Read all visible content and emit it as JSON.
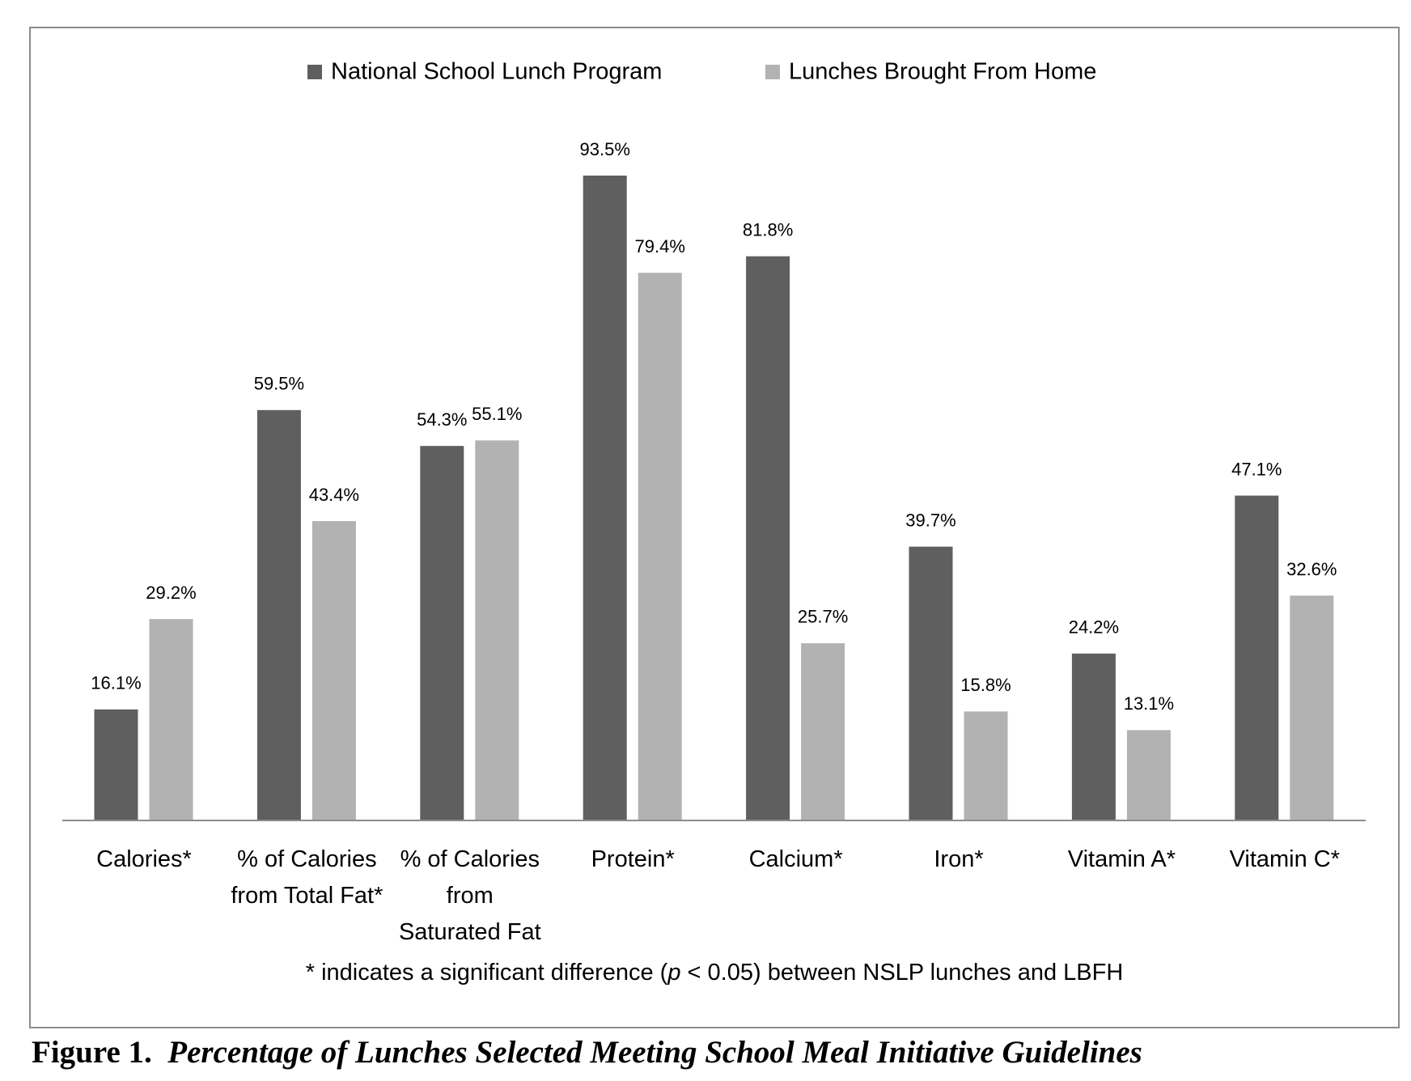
{
  "chart_data": {
    "type": "bar",
    "categories": [
      "Calories*",
      "% of Calories from Total Fat*",
      "% of Calories from Saturated Fat",
      "Protein*",
      "Calcium*",
      "Iron*",
      "Vitamin A*",
      "Vitamin C*"
    ],
    "series": [
      {
        "name": "National School Lunch Program",
        "color": "#5f5f5f",
        "values": [
          16.1,
          59.5,
          54.3,
          93.5,
          81.8,
          39.7,
          24.2,
          47.1
        ],
        "value_labels": [
          "16.1%",
          "59.5%",
          "54.3%",
          "93.5%",
          "81.8%",
          "39.7%",
          "24.2%",
          "47.1%"
        ]
      },
      {
        "name": "Lunches Brought From Home",
        "color": "#b2b2b2",
        "values": [
          29.2,
          43.4,
          55.1,
          79.4,
          25.7,
          15.8,
          13.1,
          32.6
        ],
        "value_labels": [
          "29.2%",
          "43.4%",
          "55.1%",
          "79.4%",
          "25.7%",
          "15.8%",
          "13.1%",
          "32.6%"
        ]
      }
    ],
    "note": [
      "* indicates a significant difference (",
      "p",
      " < 0.05) between NSLP lunches and LBFH"
    ],
    "caption": {
      "label": "Figure 1.",
      "text": "Percentage of Lunches Selected Meeting School Meal Initiative Guidelines"
    }
  }
}
